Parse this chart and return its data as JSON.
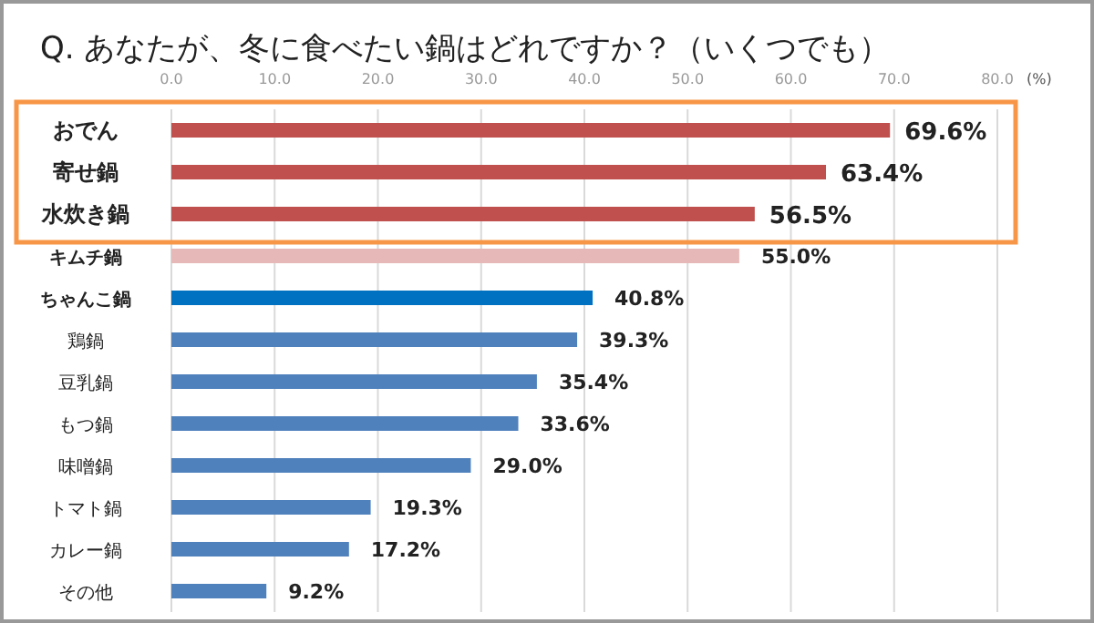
{
  "chart_data": {
    "type": "bar",
    "orientation": "horizontal",
    "title": "Q.  あなたが、冬に食べたい鍋はどれですか？（いくつでも）",
    "xlabel": "(%)",
    "categories": [
      "おでん",
      "寄せ鍋",
      "水炊き鍋",
      "キムチ鍋",
      "ちゃんこ鍋",
      "鶏鍋",
      "豆乳鍋",
      "もつ鍋",
      "味噌鍋",
      "トマト鍋",
      "カレー鍋",
      "その他"
    ],
    "values": [
      69.6,
      63.4,
      56.5,
      55.0,
      40.8,
      39.3,
      35.4,
      33.6,
      29.0,
      19.3,
      17.2,
      9.2
    ],
    "colors": [
      "#c0504d",
      "#c0504d",
      "#c0504d",
      "#e6b9b8",
      "#0070c0",
      "#4f81bd",
      "#4f81bd",
      "#4f81bd",
      "#4f81bd",
      "#4f81bd",
      "#4f81bd",
      "#4f81bd"
    ],
    "value_labels": [
      "69.6%",
      "63.4%",
      "56.5%",
      "55.0%",
      "40.8%",
      "39.3%",
      "35.4%",
      "33.6%",
      "29.0%",
      "19.3%",
      "17.2%",
      "9.2%"
    ],
    "xlim": [
      0,
      80
    ],
    "xticks": [
      {
        "value": 0,
        "label": "0.0"
      },
      {
        "value": 10,
        "label": "10.0"
      },
      {
        "value": 20,
        "label": "20.0"
      },
      {
        "value": 30,
        "label": "30.0"
      },
      {
        "value": 40,
        "label": "40.0"
      },
      {
        "value": 50,
        "label": "50.0"
      },
      {
        "value": 60,
        "label": "60.0"
      },
      {
        "value": 70,
        "label": "70.0"
      },
      {
        "value": 80,
        "label": "80.0"
      }
    ],
    "grid": "x"
  }
}
